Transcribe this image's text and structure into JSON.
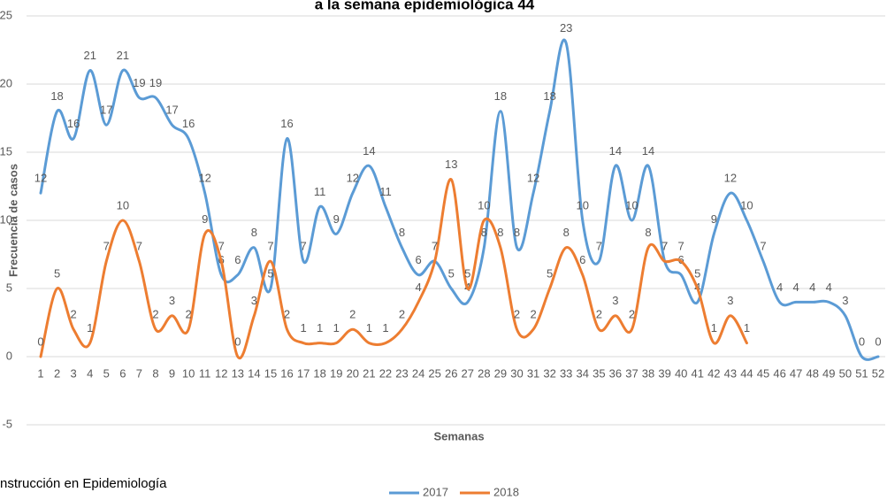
{
  "chart_data": {
    "type": "line",
    "title": "a la semana epidemiológica 44",
    "x_label": "Semanas",
    "y_label": "Frecuencia de casos",
    "note": "nstrucción en Epidemiología",
    "categories": [
      "1",
      "2",
      "3",
      "4",
      "5",
      "6",
      "7",
      "8",
      "9",
      "10",
      "11",
      "12",
      "13",
      "14",
      "15",
      "16",
      "17",
      "18",
      "19",
      "20",
      "21",
      "22",
      "23",
      "24",
      "25",
      "26",
      "27",
      "28",
      "29",
      "30",
      "31",
      "32",
      "33",
      "34",
      "35",
      "36",
      "37",
      "38",
      "39",
      "40",
      "41",
      "42",
      "43",
      "44",
      "45",
      "46",
      "47",
      "48",
      "49",
      "50",
      "51",
      "52"
    ],
    "series": [
      {
        "name": "2017",
        "color": "#5b9bd5",
        "values": [
          12,
          18,
          16,
          21,
          17,
          21,
          19,
          19,
          17,
          16,
          12,
          6,
          6,
          8,
          5,
          16,
          7,
          11,
          9,
          12,
          14,
          11,
          8,
          6,
          7,
          5,
          4,
          8,
          18,
          8,
          12,
          18,
          23,
          10,
          7,
          14,
          10,
          14,
          7,
          6,
          4,
          9,
          12,
          10,
          7,
          4,
          4,
          4,
          4,
          3,
          0,
          0
        ]
      },
      {
        "name": "2018",
        "color": "#ed7d31",
        "values": [
          0,
          5,
          2,
          1,
          7,
          10,
          7,
          2,
          3,
          2,
          9,
          7,
          0,
          3,
          7,
          2,
          1,
          1,
          1,
          2,
          1,
          1,
          2,
          4,
          7,
          13,
          5,
          10,
          8,
          2,
          2,
          5,
          8,
          6,
          2,
          3,
          2,
          8,
          7,
          7,
          5,
          1,
          3,
          1,
          null,
          null,
          null,
          null,
          null,
          null,
          null,
          null
        ]
      }
    ],
    "ylim": [
      -5,
      25
    ],
    "yticks": [
      -5,
      0,
      5,
      10,
      15,
      20,
      25
    ],
    "grid": true,
    "smooth": true,
    "legend": "bottom"
  }
}
